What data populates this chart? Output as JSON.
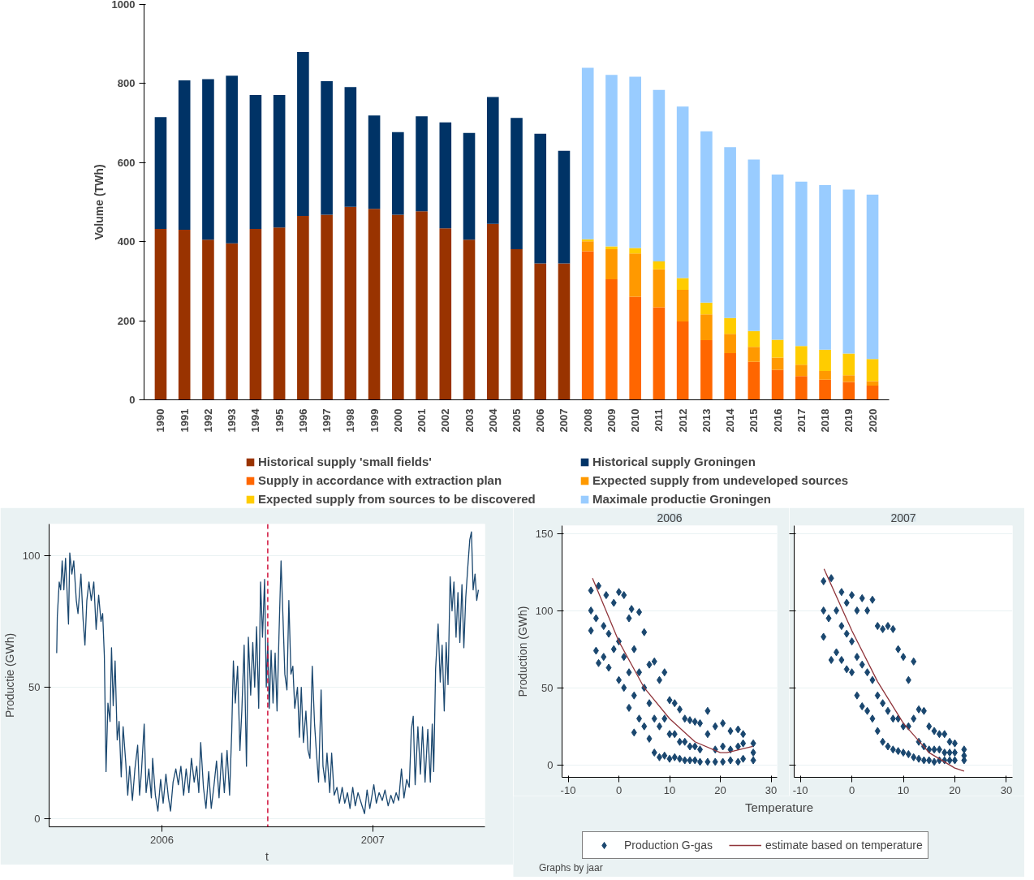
{
  "chart_data": [
    {
      "type": "bar",
      "stacked": true,
      "ylabel": "Volume (TWh)",
      "legend": "bottom",
      "grid": false,
      "categories": [
        "1990",
        "1991",
        "1992",
        "1993",
        "1994",
        "1995",
        "1996",
        "1997",
        "1998",
        "1999",
        "2000",
        "2001",
        "2002",
        "2003",
        "2004",
        "2005",
        "2006",
        "2007",
        "2008",
        "2009",
        "2010",
        "2011",
        "2012",
        "2013",
        "2014",
        "2015",
        "2016",
        "2017",
        "2018",
        "2019",
        "2020"
      ],
      "ylim": [
        0,
        1000
      ],
      "yticks": [
        0,
        200,
        400,
        600,
        800,
        1000
      ],
      "series": [
        {
          "name": "Historical supply 'small fields'",
          "color": "#993300",
          "values": [
            432,
            430,
            405,
            396,
            432,
            436,
            465,
            468,
            488,
            483,
            468,
            477,
            434,
            405,
            445,
            381,
            345,
            345,
            null,
            null,
            null,
            null,
            null,
            null,
            null,
            null,
            null,
            null,
            null,
            null,
            null
          ]
        },
        {
          "name": "Historical supply Groningen",
          "color": "#003366",
          "values": [
            283,
            378,
            406,
            424,
            339,
            335,
            415,
            338,
            303,
            236,
            209,
            240,
            268,
            270,
            321,
            332,
            328,
            285,
            null,
            null,
            null,
            null,
            null,
            null,
            null,
            null,
            null,
            null,
            null,
            null,
            null
          ]
        },
        {
          "name": "Supply in accordance with extraction plan",
          "color": "#ff6600",
          "values": [
            null,
            null,
            null,
            null,
            null,
            null,
            null,
            null,
            null,
            null,
            null,
            null,
            null,
            null,
            null,
            null,
            null,
            null,
            376,
            305,
            261,
            234,
            198,
            151,
            118,
            96,
            76,
            60,
            51,
            45,
            36
          ]
        },
        {
          "name": "Expected supply from undeveloped sources",
          "color": "#ff9900",
          "values": [
            null,
            null,
            null,
            null,
            null,
            null,
            null,
            null,
            null,
            null,
            null,
            null,
            null,
            null,
            null,
            null,
            null,
            null,
            25,
            76,
            109,
            96,
            80,
            65,
            49,
            38,
            31,
            29,
            22,
            17,
            11
          ]
        },
        {
          "name": "Expected supply from sources to be discovered",
          "color": "#ffcc00",
          "values": [
            null,
            null,
            null,
            null,
            null,
            null,
            null,
            null,
            null,
            null,
            null,
            null,
            null,
            null,
            null,
            null,
            null,
            null,
            5,
            7,
            14,
            20,
            30,
            30,
            40,
            40,
            45,
            47,
            54,
            55,
            56
          ]
        },
        {
          "name": "Maximale productie Groningen",
          "color": "#99ccff",
          "values": [
            null,
            null,
            null,
            null,
            null,
            null,
            null,
            null,
            null,
            null,
            null,
            null,
            null,
            null,
            null,
            null,
            null,
            null,
            434,
            434,
            433,
            434,
            434,
            433,
            432,
            434,
            418,
            416,
            416,
            415,
            416
          ]
        }
      ]
    },
    {
      "type": "line",
      "xlabel": "t",
      "ylabel": "Productie (GWh)",
      "grid": "y",
      "color": "#1a476f",
      "xlim": [
        2005.465,
        2007.532
      ],
      "xticks": [
        2006,
        2007
      ],
      "ylim": [
        -3,
        112
      ],
      "yticks": [
        0,
        50,
        100
      ],
      "ref_lines": [
        {
          "axis": "x",
          "value": 2006.502,
          "color": "#d0103a",
          "line_style": "dashed"
        }
      ],
      "x": [
        2005.501,
        2005.504,
        2005.513,
        2005.52,
        2005.527,
        2005.535,
        2005.543,
        2005.551,
        2005.557,
        2005.563,
        2005.573,
        2005.582,
        2005.594,
        2005.602,
        2005.616,
        2005.626,
        2005.635,
        2005.644,
        2005.654,
        2005.665,
        2005.677,
        2005.688,
        2005.7,
        2005.711,
        2005.719,
        2005.727,
        2005.735,
        2005.744,
        2005.754,
        2005.761,
        2005.769,
        2005.778,
        2005.788,
        2005.797,
        2005.807,
        2005.816,
        2005.828,
        2005.838,
        2005.847,
        2005.86,
        2005.872,
        2005.885,
        2005.894,
        2005.903,
        2005.916,
        2005.925,
        2005.938,
        2005.95,
        2005.956,
        2005.969,
        2005.981,
        2005.994,
        2006.006,
        2006.019,
        2006.031,
        2006.041,
        2006.053,
        2006.066,
        2006.078,
        2006.09,
        2006.103,
        2006.115,
        2006.128,
        2006.14,
        2006.153,
        2006.165,
        2006.175,
        2006.184,
        2006.197,
        2006.209,
        2006.222,
        2006.234,
        2006.246,
        2006.259,
        2006.271,
        2006.284,
        2006.296,
        2006.309,
        2006.321,
        2006.331,
        2006.339,
        2006.348,
        2006.359,
        2006.37,
        2006.379,
        2006.39,
        2006.401,
        2006.41,
        2006.421,
        2006.431,
        2006.44,
        2006.449,
        2006.459,
        2006.468,
        2006.477,
        2006.487,
        2006.495,
        2006.502,
        2006.509,
        2006.518,
        2006.527,
        2006.537,
        2006.546,
        2006.555,
        2006.565,
        2006.574,
        2006.583,
        2006.593,
        2006.602,
        2006.612,
        2006.621,
        2006.63,
        2006.643,
        2006.652,
        2006.661,
        2006.671,
        2006.683,
        2006.693,
        2006.702,
        2006.713,
        2006.724,
        2006.733,
        2006.743,
        2006.755,
        2006.764,
        2006.774,
        2006.783,
        2006.796,
        2006.805,
        2006.817,
        2006.83,
        2006.842,
        2006.855,
        2006.867,
        2006.88,
        2006.892,
        2006.905,
        2006.917,
        2006.93,
        2006.949,
        2006.961,
        2006.973,
        2006.986,
        2007.005,
        2007.017,
        2007.03,
        2007.045,
        2007.058,
        2007.073,
        2007.086,
        2007.098,
        2007.111,
        2007.123,
        2007.136,
        2007.148,
        2007.161,
        2007.173,
        2007.183,
        2007.192,
        2007.201,
        2007.214,
        2007.226,
        2007.236,
        2007.248,
        2007.261,
        2007.273,
        2007.282,
        2007.289,
        2007.298,
        2007.31,
        2007.32,
        2007.329,
        2007.339,
        2007.348,
        2007.357,
        2007.367,
        2007.376,
        2007.385,
        2007.395,
        2007.404,
        2007.413,
        2007.423,
        2007.432,
        2007.441,
        2007.451,
        2007.46,
        2007.468,
        2007.476,
        2007.485,
        2007.493,
        2007.501
      ],
      "values": [
        63,
        77,
        90,
        87,
        98,
        87,
        99,
        85,
        74,
        101,
        93,
        98,
        83,
        78,
        93,
        76,
        66,
        83,
        90,
        83,
        90,
        72,
        85,
        75,
        78,
        62,
        18,
        44,
        37,
        65,
        43,
        60,
        30,
        37,
        16,
        35,
        22,
        9,
        20,
        7,
        19,
        28,
        9,
        18,
        36,
        10,
        19,
        8,
        23,
        9,
        3,
        15,
        6,
        17,
        8,
        3,
        14,
        19,
        13,
        20,
        9,
        19,
        10,
        23,
        14,
        20,
        10,
        29,
        12,
        4,
        18,
        4,
        12,
        22,
        8,
        25,
        10,
        26,
        9,
        33,
        60,
        44,
        58,
        26,
        41,
        66,
        20,
        69,
        47,
        67,
        50,
        73,
        42,
        90,
        69,
        91,
        50,
        67,
        42,
        64,
        44,
        63,
        41,
        69,
        98,
        77,
        55,
        49,
        83,
        55,
        58,
        42,
        50,
        31,
        50,
        29,
        41,
        26,
        23,
        58,
        36,
        25,
        14,
        49,
        20,
        14,
        25,
        10,
        25,
        9,
        12,
        6,
        12,
        6,
        10,
        4,
        12,
        5,
        10,
        5,
        2,
        11,
        4,
        13,
        6,
        10,
        7,
        11,
        5,
        9,
        6,
        10,
        7,
        19,
        8,
        15,
        12,
        34,
        39,
        13,
        35,
        17,
        35,
        14,
        34,
        14,
        36,
        18,
        57,
        74,
        52,
        66,
        41,
        67,
        51,
        92,
        79,
        90,
        69,
        86,
        67,
        89,
        65,
        84,
        96,
        106,
        109,
        87,
        93,
        83,
        87
      ]
    },
    {
      "type": "scatter",
      "title": "2006",
      "xlabel": "Temperature",
      "ylabel": "Production (GWh)",
      "grid": "y",
      "legend": "bottom",
      "annotations": [
        "Graphs by jaar"
      ],
      "xlim": [
        -11.2,
        31.2
      ],
      "xticks": [
        -10,
        0,
        10,
        20,
        30
      ],
      "ylim": [
        -8,
        155
      ],
      "yticks": [
        0,
        50,
        100,
        150
      ],
      "series": [
        {
          "name": "Production G-gas",
          "type": "scatter",
          "marker": "diamond",
          "color": "#1a476f",
          "x": [
            -5.5,
            -5.5,
            -5.5,
            -4.5,
            -4.5,
            -4,
            -4,
            -3,
            -3,
            -2.5,
            -2,
            -2,
            -1,
            -1,
            0,
            0,
            0,
            1,
            1,
            1,
            2,
            2,
            2,
            2.5,
            3,
            3,
            3,
            4,
            4,
            4,
            5,
            5,
            5,
            6,
            6,
            6,
            7,
            7,
            7,
            8,
            8,
            8,
            9,
            9,
            9,
            10,
            10,
            10,
            11,
            11,
            11,
            12,
            12,
            12,
            13,
            13,
            13,
            14,
            14,
            14,
            15,
            15,
            15,
            16,
            16,
            16,
            17.5,
            17.5,
            17.5,
            19,
            19,
            19,
            20.5,
            20.5,
            20.5,
            22,
            22,
            22,
            23.5,
            23.5,
            23.5,
            24.5,
            24.5,
            24.5,
            26.5,
            26.5,
            26.5
          ],
          "values": [
            87,
            100,
            113,
            74,
            95,
            116,
            66,
            70,
            90,
            110,
            63,
            85,
            75,
            105,
            55,
            80,
            112,
            50,
            70,
            110,
            37,
            60,
            95,
            101,
            21,
            45,
            75,
            30,
            60,
            99,
            25,
            50,
            86,
            17,
            40,
            65,
            8,
            30,
            67,
            5,
            25,
            55,
            6,
            30,
            60,
            4,
            20,
            42,
            5,
            20,
            40,
            4,
            15,
            36,
            3,
            15,
            30,
            3,
            12,
            29,
            3,
            12,
            28,
            2,
            10,
            27,
            2,
            20,
            35,
            2,
            10,
            25,
            2,
            12,
            27,
            3,
            10,
            22,
            2,
            12,
            23,
            4,
            14,
            20,
            3,
            8,
            14
          ]
        },
        {
          "name": "estimate based on temperature",
          "type": "line",
          "color": "#90353b",
          "x": [
            -5.2,
            0,
            5,
            10,
            15,
            20,
            21.3,
            26.4
          ],
          "values": [
            121,
            80,
            50,
            30,
            15,
            8,
            8,
            12
          ]
        }
      ]
    },
    {
      "type": "scatter",
      "title": "2007",
      "grid": "y",
      "tick_labels": "x",
      "xlim": [
        -11.2,
        31.2
      ],
      "xticks": [
        -10,
        0,
        10,
        20,
        30
      ],
      "ylim": [
        -8,
        155
      ],
      "yticks": [
        0,
        50,
        100,
        150
      ],
      "series": [
        {
          "type": "scatter",
          "marker": "diamond",
          "color": "#1a476f",
          "x": [
            -5.5,
            -5.5,
            -5.5,
            -4.5,
            -4,
            -4,
            -3,
            -3,
            -2,
            -2,
            -2,
            -1,
            -1,
            -1,
            0,
            0,
            0,
            1,
            1,
            1,
            2,
            2,
            2,
            3,
            3,
            3,
            4,
            4,
            4,
            5,
            5,
            5,
            6,
            6,
            6,
            7,
            7,
            7,
            8,
            8,
            8,
            9,
            9,
            9,
            10,
            10,
            10,
            11,
            11,
            11,
            12,
            12,
            12,
            13,
            13,
            13,
            14,
            14,
            14,
            15,
            15,
            15,
            16,
            16,
            16,
            17,
            17,
            17,
            18,
            18,
            18,
            19,
            19,
            19,
            20,
            20,
            20,
            21.8,
            21.8,
            21.8
          ],
          "values": [
            83,
            100,
            119,
            95,
            121,
            68,
            73,
            100,
            68,
            90,
            112,
            62,
            85,
            105,
            60,
            80,
            110,
            45,
            70,
            100,
            38,
            65,
            108,
            35,
            60,
            100,
            30,
            55,
            107,
            22,
            45,
            90,
            15,
            40,
            88,
            12,
            35,
            90,
            10,
            30,
            88,
            9,
            30,
            75,
            8,
            25,
            70,
            7,
            25,
            55,
            5,
            30,
            67,
            4,
            15,
            36,
            3,
            12,
            35,
            3,
            10,
            25,
            2,
            10,
            22,
            3,
            10,
            20,
            3,
            8,
            20,
            3,
            8,
            15,
            3,
            8,
            14,
            3,
            6,
            10
          ]
        },
        {
          "type": "line",
          "color": "#90353b",
          "x": [
            -5.4,
            0,
            5,
            10,
            15,
            20,
            21.8
          ],
          "values": [
            127,
            87,
            54,
            27,
            8,
            -2,
            -4
          ]
        }
      ]
    }
  ]
}
